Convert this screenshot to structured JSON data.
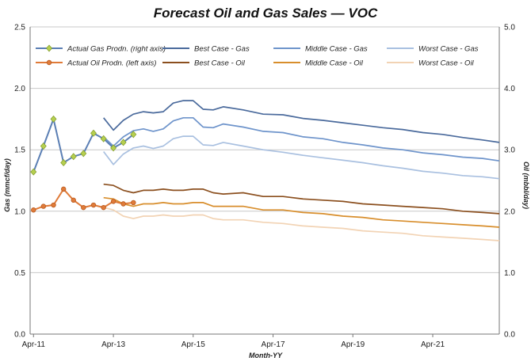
{
  "chart_data": {
    "type": "line",
    "title": "Forecast Oil and Gas Sales — VOC",
    "xlabel": "Month-YY",
    "ylabel_left": "Gas (mmcf/day)",
    "ylabel_right": "Oil (mbbl/day)",
    "x_range": [
      "2011-03-01",
      "2022-12-01"
    ],
    "x_ticks": [
      {
        "label": "Apr-11",
        "date": "2011-04-01"
      },
      {
        "label": "Apr-13",
        "date": "2013-04-01"
      },
      {
        "label": "Apr-15",
        "date": "2015-04-01"
      },
      {
        "label": "Apr-17",
        "date": "2017-04-01"
      },
      {
        "label": "Apr-19",
        "date": "2019-04-01"
      },
      {
        "label": "Apr-21",
        "date": "2021-04-01"
      }
    ],
    "y_left": {
      "min": 0,
      "max": 2.5,
      "ticks": [
        "0.0",
        "0.5",
        "1.0",
        "1.5",
        "2.0",
        "2.5"
      ]
    },
    "y_right": {
      "min": 0,
      "max": 5.0,
      "ticks": [
        "0.0",
        "1.0",
        "2.0",
        "3.0",
        "4.0",
        "5.0"
      ]
    },
    "grid": "horizontal",
    "legend": "top",
    "series": [
      {
        "name": "Actual Gas Prodn. (right axis)",
        "axis": "right",
        "color": "#5b7fb4",
        "marker": "diamond",
        "marker_color": "#b6cf4f",
        "points": [
          [
            "2011-04-01",
            2.64
          ],
          [
            "2011-07-01",
            3.06
          ],
          [
            "2011-10-01",
            3.5
          ],
          [
            "2012-01-01",
            2.79
          ],
          [
            "2012-04-01",
            2.89
          ],
          [
            "2012-07-01",
            2.94
          ],
          [
            "2012-10-01",
            3.27
          ],
          [
            "2013-01-01",
            3.18
          ],
          [
            "2013-04-01",
            3.03
          ],
          [
            "2013-07-01",
            3.12
          ],
          [
            "2013-10-01",
            3.25
          ]
        ]
      },
      {
        "name": "Actual Oil Prodn. (left axis)",
        "axis": "left",
        "color": "#e07b39",
        "marker": "star",
        "marker_color": "#e07b39",
        "points": [
          [
            "2011-04-01",
            1.01
          ],
          [
            "2011-07-01",
            1.04
          ],
          [
            "2011-10-01",
            1.05
          ],
          [
            "2012-01-01",
            1.18
          ],
          [
            "2012-04-01",
            1.09
          ],
          [
            "2012-07-01",
            1.03
          ],
          [
            "2012-10-01",
            1.05
          ],
          [
            "2013-01-01",
            1.03
          ],
          [
            "2013-04-01",
            1.08
          ],
          [
            "2013-07-01",
            1.06
          ],
          [
            "2013-10-01",
            1.07
          ]
        ]
      },
      {
        "name": "Best Case - Gas",
        "axis": "right",
        "color": "#4a6a9c",
        "points": [
          [
            "2013-01-01",
            3.52
          ],
          [
            "2013-04-01",
            3.32
          ],
          [
            "2013-07-01",
            3.48
          ],
          [
            "2013-10-01",
            3.58
          ],
          [
            "2014-01-01",
            3.62
          ],
          [
            "2014-04-01",
            3.6
          ],
          [
            "2014-07-01",
            3.62
          ],
          [
            "2014-10-01",
            3.76
          ],
          [
            "2015-01-01",
            3.8
          ],
          [
            "2015-04-01",
            3.8
          ],
          [
            "2015-07-01",
            3.66
          ],
          [
            "2015-10-01",
            3.65
          ],
          [
            "2016-01-01",
            3.7
          ],
          [
            "2016-07-01",
            3.65
          ],
          [
            "2017-01-01",
            3.58
          ],
          [
            "2017-07-01",
            3.57
          ],
          [
            "2018-01-01",
            3.51
          ],
          [
            "2018-07-01",
            3.48
          ],
          [
            "2019-01-01",
            3.44
          ],
          [
            "2019-07-01",
            3.4
          ],
          [
            "2020-01-01",
            3.36
          ],
          [
            "2020-07-01",
            3.33
          ],
          [
            "2021-01-01",
            3.28
          ],
          [
            "2021-07-01",
            3.25
          ],
          [
            "2022-01-01",
            3.2
          ],
          [
            "2022-07-01",
            3.16
          ],
          [
            "2022-12-01",
            3.12
          ]
        ]
      },
      {
        "name": "Middle Case - Gas",
        "axis": "right",
        "color": "#6e94cb",
        "points": [
          [
            "2013-01-01",
            3.21
          ],
          [
            "2013-04-01",
            3.06
          ],
          [
            "2013-07-01",
            3.21
          ],
          [
            "2013-10-01",
            3.31
          ],
          [
            "2014-01-01",
            3.34
          ],
          [
            "2014-04-01",
            3.3
          ],
          [
            "2014-07-01",
            3.34
          ],
          [
            "2014-10-01",
            3.47
          ],
          [
            "2015-01-01",
            3.52
          ],
          [
            "2015-04-01",
            3.52
          ],
          [
            "2015-07-01",
            3.37
          ],
          [
            "2015-10-01",
            3.36
          ],
          [
            "2016-01-01",
            3.42
          ],
          [
            "2016-07-01",
            3.37
          ],
          [
            "2017-01-01",
            3.3
          ],
          [
            "2017-07-01",
            3.28
          ],
          [
            "2018-01-01",
            3.21
          ],
          [
            "2018-07-01",
            3.18
          ],
          [
            "2019-01-01",
            3.12
          ],
          [
            "2019-07-01",
            3.08
          ],
          [
            "2020-01-01",
            3.03
          ],
          [
            "2020-07-01",
            3.0
          ],
          [
            "2021-01-01",
            2.95
          ],
          [
            "2021-07-01",
            2.92
          ],
          [
            "2022-01-01",
            2.88
          ],
          [
            "2022-07-01",
            2.86
          ],
          [
            "2022-12-01",
            2.82
          ]
        ]
      },
      {
        "name": "Worst Case - Gas",
        "axis": "right",
        "color": "#a9c0e0",
        "points": [
          [
            "2013-01-01",
            2.97
          ],
          [
            "2013-04-01",
            2.76
          ],
          [
            "2013-07-01",
            2.93
          ],
          [
            "2013-10-01",
            3.03
          ],
          [
            "2014-01-01",
            3.06
          ],
          [
            "2014-04-01",
            3.02
          ],
          [
            "2014-07-01",
            3.06
          ],
          [
            "2014-10-01",
            3.18
          ],
          [
            "2015-01-01",
            3.22
          ],
          [
            "2015-04-01",
            3.22
          ],
          [
            "2015-07-01",
            3.08
          ],
          [
            "2015-10-01",
            3.07
          ],
          [
            "2016-01-01",
            3.12
          ],
          [
            "2016-07-01",
            3.06
          ],
          [
            "2017-01-01",
            3.0
          ],
          [
            "2017-07-01",
            2.96
          ],
          [
            "2018-01-01",
            2.91
          ],
          [
            "2018-07-01",
            2.87
          ],
          [
            "2019-01-01",
            2.83
          ],
          [
            "2019-07-01",
            2.79
          ],
          [
            "2020-01-01",
            2.74
          ],
          [
            "2020-07-01",
            2.7
          ],
          [
            "2021-01-01",
            2.65
          ],
          [
            "2021-07-01",
            2.62
          ],
          [
            "2022-01-01",
            2.58
          ],
          [
            "2022-07-01",
            2.56
          ],
          [
            "2022-12-01",
            2.53
          ]
        ]
      },
      {
        "name": "Best Case - Oil",
        "axis": "left",
        "color": "#8b4f1e",
        "points": [
          [
            "2013-01-01",
            1.22
          ],
          [
            "2013-04-01",
            1.21
          ],
          [
            "2013-07-01",
            1.17
          ],
          [
            "2013-10-01",
            1.15
          ],
          [
            "2014-01-01",
            1.17
          ],
          [
            "2014-04-01",
            1.17
          ],
          [
            "2014-07-01",
            1.18
          ],
          [
            "2014-10-01",
            1.17
          ],
          [
            "2015-01-01",
            1.17
          ],
          [
            "2015-04-01",
            1.18
          ],
          [
            "2015-07-01",
            1.18
          ],
          [
            "2015-10-01",
            1.15
          ],
          [
            "2016-01-01",
            1.14
          ],
          [
            "2016-07-01",
            1.15
          ],
          [
            "2017-01-01",
            1.12
          ],
          [
            "2017-07-01",
            1.12
          ],
          [
            "2018-01-01",
            1.1
          ],
          [
            "2018-07-01",
            1.09
          ],
          [
            "2019-01-01",
            1.08
          ],
          [
            "2019-07-01",
            1.06
          ],
          [
            "2020-01-01",
            1.05
          ],
          [
            "2020-07-01",
            1.04
          ],
          [
            "2021-01-01",
            1.03
          ],
          [
            "2021-07-01",
            1.02
          ],
          [
            "2022-01-01",
            1.0
          ],
          [
            "2022-07-01",
            0.99
          ],
          [
            "2022-12-01",
            0.98
          ]
        ]
      },
      {
        "name": "Middle Case - Oil",
        "axis": "left",
        "color": "#d88e2c",
        "points": [
          [
            "2013-01-01",
            1.11
          ],
          [
            "2013-04-01",
            1.1
          ],
          [
            "2013-07-01",
            1.06
          ],
          [
            "2013-10-01",
            1.04
          ],
          [
            "2014-01-01",
            1.06
          ],
          [
            "2014-04-01",
            1.06
          ],
          [
            "2014-07-01",
            1.07
          ],
          [
            "2014-10-01",
            1.06
          ],
          [
            "2015-01-01",
            1.06
          ],
          [
            "2015-04-01",
            1.07
          ],
          [
            "2015-07-01",
            1.07
          ],
          [
            "2015-10-01",
            1.04
          ],
          [
            "2016-01-01",
            1.04
          ],
          [
            "2016-07-01",
            1.04
          ],
          [
            "2017-01-01",
            1.01
          ],
          [
            "2017-07-01",
            1.01
          ],
          [
            "2018-01-01",
            0.99
          ],
          [
            "2018-07-01",
            0.98
          ],
          [
            "2019-01-01",
            0.96
          ],
          [
            "2019-07-01",
            0.95
          ],
          [
            "2020-01-01",
            0.93
          ],
          [
            "2020-07-01",
            0.92
          ],
          [
            "2021-01-01",
            0.91
          ],
          [
            "2021-07-01",
            0.9
          ],
          [
            "2022-01-01",
            0.89
          ],
          [
            "2022-07-01",
            0.88
          ],
          [
            "2022-12-01",
            0.87
          ]
        ]
      },
      {
        "name": "Worst Case - Oil",
        "axis": "left",
        "color": "#f2d3b4",
        "points": [
          [
            "2013-01-01",
            1.03
          ],
          [
            "2013-04-01",
            1.01
          ],
          [
            "2013-07-01",
            0.96
          ],
          [
            "2013-10-01",
            0.94
          ],
          [
            "2014-01-01",
            0.96
          ],
          [
            "2014-04-01",
            0.96
          ],
          [
            "2014-07-01",
            0.97
          ],
          [
            "2014-10-01",
            0.96
          ],
          [
            "2015-01-01",
            0.96
          ],
          [
            "2015-04-01",
            0.97
          ],
          [
            "2015-07-01",
            0.97
          ],
          [
            "2015-10-01",
            0.94
          ],
          [
            "2016-01-01",
            0.93
          ],
          [
            "2016-07-01",
            0.93
          ],
          [
            "2017-01-01",
            0.91
          ],
          [
            "2017-07-01",
            0.9
          ],
          [
            "2018-01-01",
            0.88
          ],
          [
            "2018-07-01",
            0.87
          ],
          [
            "2019-01-01",
            0.86
          ],
          [
            "2019-07-01",
            0.84
          ],
          [
            "2020-01-01",
            0.83
          ],
          [
            "2020-07-01",
            0.82
          ],
          [
            "2021-01-01",
            0.8
          ],
          [
            "2021-07-01",
            0.79
          ],
          [
            "2022-01-01",
            0.78
          ],
          [
            "2022-07-01",
            0.77
          ],
          [
            "2022-12-01",
            0.76
          ]
        ]
      }
    ]
  }
}
